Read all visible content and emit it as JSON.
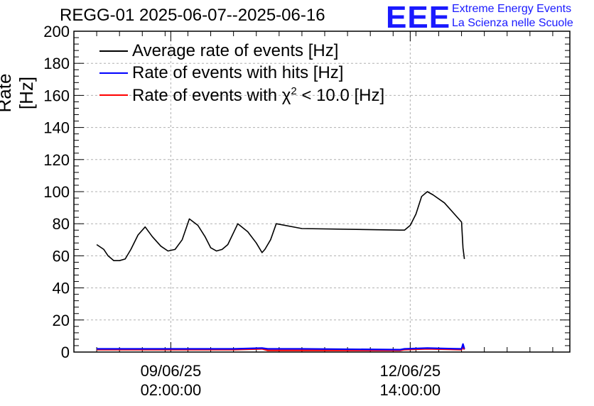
{
  "chart_data": {
    "type": "line",
    "title": "REGG-01 2025-06-07--2025-06-16",
    "ylabel": "Rate [Hz]",
    "xlabel": "",
    "ylim": [
      0,
      200
    ],
    "yticks": [
      0,
      20,
      40,
      60,
      80,
      100,
      120,
      140,
      160,
      180,
      200
    ],
    "xlim": [
      "2025-06-07T16:00:00",
      "2025-06-14T22:00:00"
    ],
    "xticks": [
      {
        "value": "2025-06-09T02:00:00",
        "date_label": "09/06/25",
        "time_label": "02:00:00"
      },
      {
        "value": "2025-06-12T14:00:00",
        "date_label": "12/06/25",
        "time_label": "14:00:00"
      }
    ],
    "grid": true,
    "legend_position": "top-left",
    "series": [
      {
        "name": "Average rate of events [Hz]",
        "color": "#000000",
        "x": [
          "2025-06-08T00:00:00",
          "2025-06-08T02:30:00",
          "2025-06-08T04:00:00",
          "2025-06-08T06:00:00",
          "2025-06-08T08:00:00",
          "2025-06-08T10:00:00",
          "2025-06-08T12:00:00",
          "2025-06-08T14:30:00",
          "2025-06-08T17:00:00",
          "2025-06-08T19:30:00",
          "2025-06-08T22:30:00",
          "2025-06-09T01:00:00",
          "2025-06-09T03:30:00",
          "2025-06-09T06:00:00",
          "2025-06-09T08:30:00",
          "2025-06-09T11:30:00",
          "2025-06-09T14:00:00",
          "2025-06-09T16:00:00",
          "2025-06-09T18:00:00",
          "2025-06-09T20:00:00",
          "2025-06-09T22:00:00",
          "2025-06-10T01:30:00",
          "2025-06-10T05:00:00",
          "2025-06-10T08:00:00",
          "2025-06-10T10:00:00",
          "2025-06-10T11:00:00",
          "2025-06-10T13:00:00",
          "2025-06-10T15:00:00",
          "2025-06-11T00:00:00",
          "2025-06-12T10:30:00",
          "2025-06-12T12:00:00",
          "2025-06-12T14:00:00",
          "2025-06-12T16:00:00",
          "2025-06-12T18:00:00",
          "2025-06-12T20:00:00",
          "2025-06-12T22:00:00",
          "2025-06-13T02:00:00",
          "2025-06-13T08:00:00",
          "2025-06-13T08:30:00",
          "2025-06-13T09:00:00"
        ],
        "values": [
          67,
          64,
          60,
          57,
          57,
          58,
          64,
          73,
          78,
          72,
          66,
          63,
          64,
          70,
          83,
          79,
          72,
          65,
          63,
          64,
          67,
          80,
          75,
          68,
          62,
          64,
          70,
          80,
          77,
          76,
          76,
          79,
          86,
          97,
          100,
          98,
          93,
          81,
          65,
          58
        ]
      },
      {
        "name": "Rate of events with hits [Hz]",
        "color": "#0000ff",
        "x": [
          "2025-06-08T00:00:00",
          "2025-06-09T00:00:00",
          "2025-06-10T00:00:00",
          "2025-06-10T10:00:00",
          "2025-06-10T12:00:00",
          "2025-06-11T00:00:00",
          "2025-06-12T10:30:00",
          "2025-06-12T12:00:00",
          "2025-06-12T20:00:00",
          "2025-06-13T08:00:00",
          "2025-06-13T08:30:00",
          "2025-06-13T09:00:00"
        ],
        "values": [
          2,
          2,
          2,
          2.5,
          2,
          2,
          1.5,
          2,
          2.5,
          2,
          5,
          2
        ]
      },
      {
        "name": "Rate of events with χ² < 10.0 [Hz]",
        "color": "#ff0000",
        "x": [
          "2025-06-08T00:00:00",
          "2025-06-09T00:00:00",
          "2025-06-10T00:00:00",
          "2025-06-10T10:00:00",
          "2025-06-10T12:00:00",
          "2025-06-11T00:00:00",
          "2025-06-12T10:30:00",
          "2025-06-12T12:00:00",
          "2025-06-12T20:00:00",
          "2025-06-13T08:00:00",
          "2025-06-13T08:30:00",
          "2025-06-13T09:00:00"
        ],
        "values": [
          1.5,
          1.5,
          1.5,
          2,
          1,
          1,
          1,
          1.5,
          2,
          1.5,
          3,
          1.5
        ]
      }
    ]
  },
  "legend": {
    "avg_label": "Average rate of events [Hz]",
    "hits_label": "Rate of events with hits [Hz]",
    "chi_prefix": "Rate of events with ",
    "chi_symbol": "χ",
    "chi_sup": "2",
    "chi_suffix": " < 10.0 [Hz]"
  },
  "logo": {
    "letters": "EEE",
    "line1": "Extreme Energy Events",
    "line2": "La Scienza nelle Scuole",
    "color": "#1a1aff"
  }
}
